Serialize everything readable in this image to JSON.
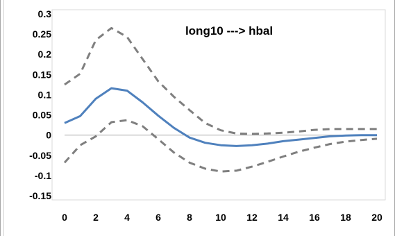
{
  "chart_data": {
    "type": "line",
    "title": "long10 ---> hbal",
    "xlabel": "",
    "ylabel": "",
    "xlim": [
      0,
      20
    ],
    "ylim": [
      -0.15,
      0.3
    ],
    "x_ticks": [
      "0",
      "2",
      "4",
      "6",
      "8",
      "10",
      "12",
      "14",
      "16",
      "18",
      "20"
    ],
    "y_ticks": [
      "0.3",
      "0.25",
      "0.2",
      "0.15",
      "0.1",
      "0.05",
      "0",
      "-0.05",
      "-0.1",
      "-0.15"
    ],
    "grid": false,
    "legend": "none",
    "x": [
      0,
      1,
      2,
      3,
      4,
      5,
      6,
      7,
      8,
      9,
      10,
      11,
      12,
      13,
      14,
      15,
      16,
      17,
      18,
      19,
      20
    ],
    "series": [
      {
        "role": "upper-bound",
        "style": "dashed",
        "color": "#7f7f7f",
        "values": [
          0.125,
          0.152,
          0.235,
          0.265,
          0.243,
          0.188,
          0.133,
          0.095,
          0.062,
          0.03,
          0.012,
          0.004,
          0.003,
          0.004,
          0.006,
          0.009,
          0.013,
          0.015,
          0.015,
          0.015,
          0.015
        ]
      },
      {
        "role": "estimate",
        "style": "solid",
        "color": "#4f81bd",
        "values": [
          0.03,
          0.047,
          0.09,
          0.116,
          0.11,
          0.081,
          0.048,
          0.018,
          -0.006,
          -0.019,
          -0.025,
          -0.027,
          -0.025,
          -0.021,
          -0.015,
          -0.011,
          -0.007,
          -0.003,
          -0.001,
          0.0,
          0.0
        ]
      },
      {
        "role": "lower-bound",
        "style": "dashed",
        "color": "#7f7f7f",
        "values": [
          -0.068,
          -0.025,
          -0.003,
          0.032,
          0.037,
          0.022,
          -0.01,
          -0.043,
          -0.068,
          -0.083,
          -0.09,
          -0.088,
          -0.078,
          -0.066,
          -0.053,
          -0.041,
          -0.031,
          -0.022,
          -0.016,
          -0.012,
          -0.009
        ]
      }
    ]
  }
}
